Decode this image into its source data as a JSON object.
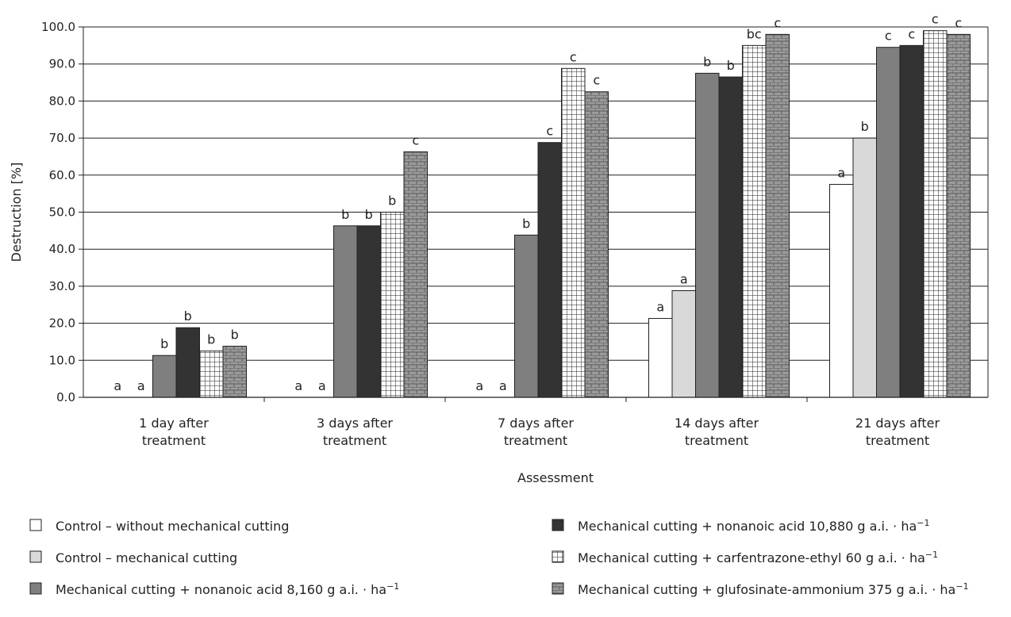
{
  "chart_data": {
    "type": "bar",
    "xlabel": "Assessment",
    "ylabel": "Destruction [%]",
    "ylim": [
      0,
      100
    ],
    "yticks": [
      "0.0",
      "10.0",
      "20.0",
      "30.0",
      "40.0",
      "50.0",
      "60.0",
      "70.0",
      "80.0",
      "90.0",
      "100.0"
    ],
    "grid": true,
    "legend_position": "bottom",
    "categories": [
      [
        "1 day after",
        "treatment"
      ],
      [
        "3 days after",
        "treatment"
      ],
      [
        "7 days after",
        "treatment"
      ],
      [
        "14 days after",
        "treatment"
      ],
      [
        "21 days after",
        "treatment"
      ]
    ],
    "series": [
      {
        "legend_text": "Control – without mechanical cutting",
        "legend_unit": "",
        "pattern": "white",
        "values": [
          0,
          0,
          0,
          21.3,
          57.5
        ],
        "letters": [
          "a",
          "a",
          "a",
          "a",
          "a"
        ]
      },
      {
        "legend_text": "Control – mechanical cutting",
        "legend_unit": "",
        "pattern": "lightgray",
        "values": [
          0,
          0,
          0,
          28.8,
          70.0
        ],
        "letters": [
          "a",
          "a",
          "a",
          "a",
          "b"
        ]
      },
      {
        "legend_text": "Mechanical cutting + nonanoic acid  8,160 g a.i. · ha",
        "legend_unit": "−1",
        "pattern": "darkgray",
        "values": [
          11.3,
          46.3,
          43.8,
          87.5,
          94.5
        ],
        "letters": [
          "b",
          "b",
          "b",
          "b",
          "c"
        ]
      },
      {
        "legend_text": "Mechanical cutting + nonanoic acid  10,880 g a.i. · ha",
        "legend_unit": "−1",
        "pattern": "black",
        "values": [
          18.8,
          46.3,
          68.8,
          86.5,
          95.0
        ],
        "letters": [
          "b",
          "b",
          "c",
          "b",
          "c"
        ]
      },
      {
        "legend_text": "Mechanical cutting + carfentrazone-ethyl  60 g a.i. · ha",
        "legend_unit": "−1",
        "pattern": "grid",
        "values": [
          12.5,
          50.0,
          88.8,
          95.0,
          99.0
        ],
        "letters": [
          "b",
          "b",
          "c",
          "bc",
          "c"
        ]
      },
      {
        "legend_text": "Mechanical cutting + glufosinate-ammonium  375 g a.i. · ha",
        "legend_unit": "−1",
        "pattern": "brick",
        "values": [
          13.8,
          66.3,
          82.5,
          98.0,
          98.0
        ],
        "letters": [
          "b",
          "c",
          "c",
          "c",
          "c"
        ]
      }
    ]
  }
}
